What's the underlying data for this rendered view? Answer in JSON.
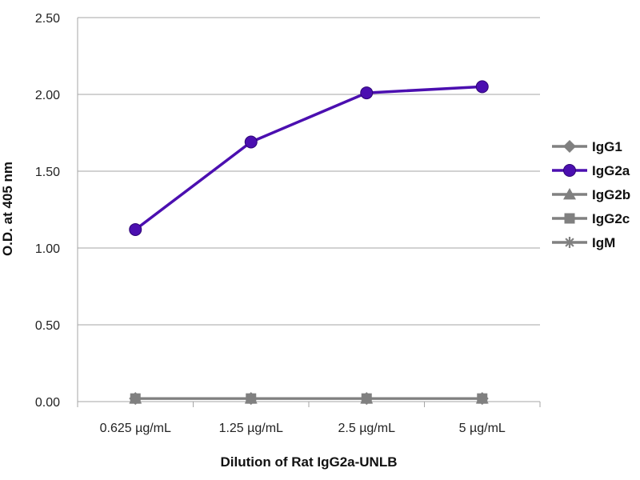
{
  "chart_data": {
    "type": "line",
    "xlabel": "Dilution of Rat IgG2a-UNLB",
    "ylabel": "O.D. at 405 nm",
    "categories": [
      "0.625 µg/mL",
      "1.25 µg/mL",
      "2.5 µg/mL",
      "5 µg/mL"
    ],
    "ylim": [
      0,
      2.5
    ],
    "y_ticks": [
      "0.00",
      "0.50",
      "1.00",
      "1.50",
      "2.00",
      "2.50"
    ],
    "grid": true,
    "legend_placement": "right",
    "series": [
      {
        "name": "IgG1",
        "marker": "diamond",
        "color": "#808080",
        "values": [
          0.02,
          0.02,
          0.02,
          0.02
        ]
      },
      {
        "name": "IgG2a",
        "marker": "circle",
        "color": "#4b0fb0",
        "values": [
          1.12,
          1.69,
          2.01,
          2.05
        ]
      },
      {
        "name": "IgG2b",
        "marker": "triangle",
        "color": "#808080",
        "values": [
          0.02,
          0.02,
          0.02,
          0.02
        ]
      },
      {
        "name": "IgG2c",
        "marker": "square",
        "color": "#808080",
        "values": [
          0.02,
          0.02,
          0.02,
          0.02
        ]
      },
      {
        "name": "IgM",
        "marker": "star",
        "color": "#808080",
        "values": [
          0.02,
          0.02,
          0.02,
          0.02
        ]
      }
    ]
  }
}
